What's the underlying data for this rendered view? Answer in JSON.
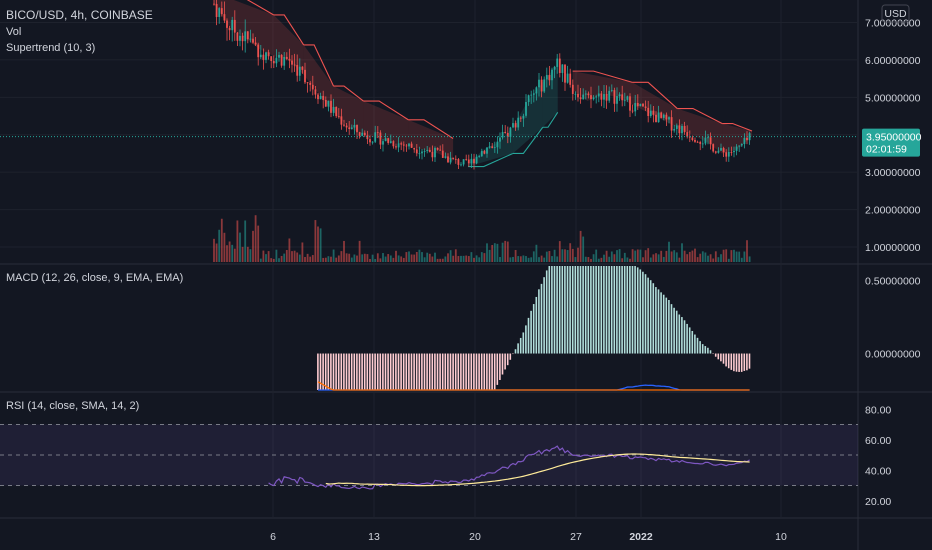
{
  "header": {
    "symbol_line": "BICO/USD, 4h, COINBASE",
    "vol_label": "Vol",
    "supertrend_label": "Supertrend (10, 3)",
    "currency_badge": "USD",
    "last_price": "3.95000000",
    "countdown": "02:01:59"
  },
  "panes": {
    "macd_label": "MACD (12, 26, close, 9, EMA, EMA)",
    "rsi_label": "RSI (14, close, SMA, 14, 2)"
  },
  "colors": {
    "background": "#131722",
    "up": "#26a69a",
    "down": "#ef5350",
    "supertrend_down": "#ef5350",
    "supertrend_up": "#26a69a",
    "macd_line": "#2962ff",
    "signal_line": "#ff6d00",
    "rsi_line": "#7e57c2",
    "rsi_ma": "#ffeb99",
    "price_badge": "#26a69a"
  },
  "chart_data": [
    {
      "type": "candlestick",
      "pane": "price",
      "y_ticks": [
        "7.00000000",
        "6.00000000",
        "5.00000000",
        "4.00000000",
        "3.00000000",
        "2.00000000",
        "1.00000000"
      ],
      "ylim": [
        0.6,
        7.6
      ],
      "x_ticks": [
        "6",
        "13",
        "20",
        "27",
        "2022",
        "10"
      ],
      "close_path": [
        {
          "date": "2021-12-04",
          "close": 7.5
        },
        {
          "date": "2021-12-05",
          "close": 6.9
        },
        {
          "date": "2021-12-06",
          "close": 6.6
        },
        {
          "date": "2021-12-07",
          "close": 6.3
        },
        {
          "date": "2021-12-08",
          "close": 6.1
        },
        {
          "date": "2021-12-09",
          "close": 6.0
        },
        {
          "date": "2021-12-10",
          "close": 5.6
        },
        {
          "date": "2021-12-11",
          "close": 5.1
        },
        {
          "date": "2021-12-12",
          "close": 4.6
        },
        {
          "date": "2021-12-13",
          "close": 4.2
        },
        {
          "date": "2021-12-14",
          "close": 4.0
        },
        {
          "date": "2021-12-15",
          "close": 3.9
        },
        {
          "date": "2021-12-16",
          "close": 3.8
        },
        {
          "date": "2021-12-17",
          "close": 3.7
        },
        {
          "date": "2021-12-18",
          "close": 3.6
        },
        {
          "date": "2021-12-19",
          "close": 3.5
        },
        {
          "date": "2021-12-20",
          "close": 3.3
        },
        {
          "date": "2021-12-21",
          "close": 3.2
        },
        {
          "date": "2021-12-22",
          "close": 3.6
        },
        {
          "date": "2021-12-23",
          "close": 3.8
        },
        {
          "date": "2021-12-24",
          "close": 4.2
        },
        {
          "date": "2021-12-25",
          "close": 4.9
        },
        {
          "date": "2021-12-26",
          "close": 5.4
        },
        {
          "date": "2021-12-27",
          "close": 5.9
        },
        {
          "date": "2021-12-28",
          "close": 5.2
        },
        {
          "date": "2021-12-29",
          "close": 4.9
        },
        {
          "date": "2021-12-30",
          "close": 5.1
        },
        {
          "date": "2021-12-31",
          "close": 5.0
        },
        {
          "date": "2022-01-01",
          "close": 4.8
        },
        {
          "date": "2022-01-02",
          "close": 4.6
        },
        {
          "date": "2022-01-03",
          "close": 4.4
        },
        {
          "date": "2022-01-04",
          "close": 4.2
        },
        {
          "date": "2022-01-05",
          "close": 4.0
        },
        {
          "date": "2022-01-06",
          "close": 3.8
        },
        {
          "date": "2022-01-07",
          "close": 3.5
        },
        {
          "date": "2022-01-08",
          "close": 3.6
        },
        {
          "date": "2022-01-09",
          "close": 3.95
        }
      ],
      "supertrend": [
        {
          "date": "2021-12-04",
          "value": 7.8,
          "trend": "down"
        },
        {
          "date": "2021-12-08",
          "value": 7.2,
          "trend": "down"
        },
        {
          "date": "2021-12-10",
          "value": 6.4,
          "trend": "down"
        },
        {
          "date": "2021-12-12",
          "value": 5.3,
          "trend": "down"
        },
        {
          "date": "2021-12-14",
          "value": 4.9,
          "trend": "down"
        },
        {
          "date": "2021-12-17",
          "value": 4.4,
          "trend": "down"
        },
        {
          "date": "2021-12-20",
          "value": 3.9,
          "trend": "down"
        },
        {
          "date": "2021-12-21",
          "value": 3.15,
          "trend": "up"
        },
        {
          "date": "2021-12-24",
          "value": 3.5,
          "trend": "up"
        },
        {
          "date": "2021-12-26",
          "value": 4.2,
          "trend": "up"
        },
        {
          "date": "2021-12-27",
          "value": 4.6,
          "trend": "up"
        },
        {
          "date": "2021-12-28",
          "value": 5.7,
          "trend": "down"
        },
        {
          "date": "2022-01-01",
          "value": 5.4,
          "trend": "down"
        },
        {
          "date": "2022-01-04",
          "value": 4.7,
          "trend": "down"
        },
        {
          "date": "2022-01-07",
          "value": 4.3,
          "trend": "down"
        },
        {
          "date": "2022-01-09",
          "value": 4.1,
          "trend": "down"
        }
      ]
    },
    {
      "type": "bar",
      "pane": "volume",
      "note": "volume histogram aligned with price"
    },
    {
      "type": "line",
      "pane": "macd",
      "y_ticks": [
        "0.50000000",
        "0.00000000"
      ],
      "ylim": [
        -0.25,
        0.6
      ]
    },
    {
      "type": "line",
      "pane": "rsi",
      "y_ticks": [
        "80.00",
        "60.00",
        "40.00",
        "20.00"
      ],
      "ylim": [
        10,
        90
      ],
      "bands": [
        30,
        50,
        70
      ]
    }
  ]
}
